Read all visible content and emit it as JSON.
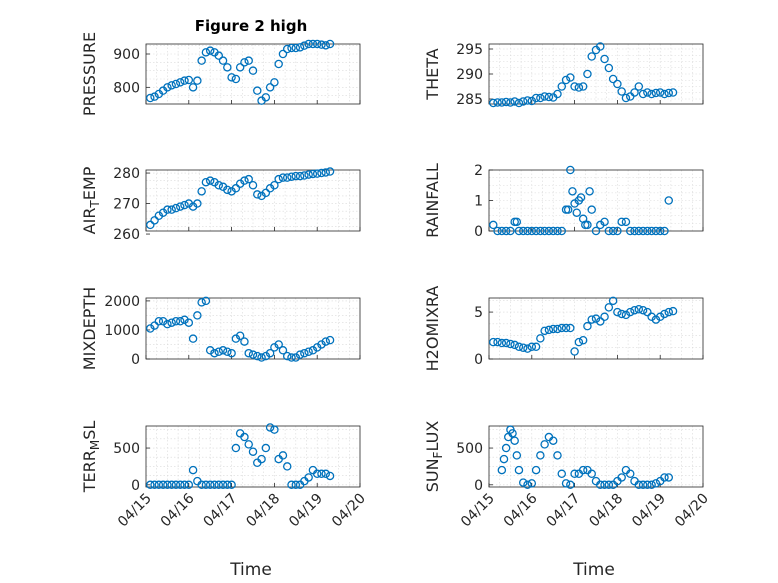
{
  "figure": {
    "title": "Figure 2 high",
    "marker_color": "#0072BD",
    "x_tick_labels": [
      "04/15",
      "04/16",
      "04/17",
      "04/18",
      "04/19",
      "04/20"
    ],
    "x_label": "Time"
  },
  "chart_data": [
    {
      "type": "scatter",
      "ylabel": "PRESSURE",
      "ylim": [
        750,
        930
      ],
      "yticks": [
        800,
        900
      ],
      "xlim": [
        0,
        5
      ],
      "grid": true,
      "x": [
        0.1,
        0.2,
        0.3,
        0.4,
        0.5,
        0.6,
        0.7,
        0.8,
        0.9,
        1.0,
        1.1,
        1.2,
        1.3,
        1.4,
        1.5,
        1.6,
        1.7,
        1.8,
        1.9,
        2.0,
        2.1,
        2.2,
        2.3,
        2.4,
        2.5,
        2.6,
        2.7,
        2.8,
        2.9,
        3.0,
        3.1,
        3.2,
        3.3,
        3.4,
        3.5,
        3.6,
        3.7,
        3.8,
        3.9,
        4.0,
        4.1,
        4.2,
        4.3
      ],
      "y": [
        768,
        772,
        780,
        790,
        800,
        806,
        810,
        815,
        820,
        822,
        800,
        820,
        880,
        905,
        910,
        905,
        895,
        880,
        860,
        830,
        825,
        860,
        875,
        880,
        850,
        790,
        760,
        770,
        800,
        815,
        870,
        900,
        915,
        918,
        918,
        920,
        925,
        930,
        930,
        930,
        928,
        926,
        930
      ]
    },
    {
      "type": "scatter",
      "ylabel": "THETA",
      "ylim": [
        284,
        296
      ],
      "yticks": [
        285,
        290,
        295
      ],
      "xlim": [
        0,
        5
      ],
      "grid": true,
      "x": [
        0.1,
        0.2,
        0.3,
        0.4,
        0.5,
        0.6,
        0.7,
        0.8,
        0.9,
        1.0,
        1.1,
        1.2,
        1.3,
        1.4,
        1.5,
        1.6,
        1.7,
        1.8,
        1.9,
        2.0,
        2.1,
        2.2,
        2.3,
        2.4,
        2.5,
        2.6,
        2.7,
        2.8,
        2.9,
        3.0,
        3.1,
        3.2,
        3.3,
        3.4,
        3.5,
        3.6,
        3.7,
        3.8,
        3.9,
        4.0,
        4.1,
        4.2,
        4.3
      ],
      "y": [
        284.2,
        284.3,
        284.3,
        284.4,
        284.3,
        284.5,
        284.2,
        284.5,
        284.7,
        284.6,
        285.2,
        285.2,
        285.5,
        285.4,
        285.3,
        286.0,
        287.5,
        288.8,
        289.3,
        287.5,
        287.3,
        287.5,
        290.0,
        293.5,
        294.8,
        295.5,
        293.0,
        291.2,
        289.0,
        288.0,
        286.5,
        285.2,
        285.5,
        286.3,
        287.5,
        286.0,
        286.3,
        286.0,
        286.2,
        286.3,
        286.0,
        286.2,
        286.3
      ]
    },
    {
      "type": "scatter",
      "ylabel": "AIR_TEMP",
      "ylim": [
        261,
        281
      ],
      "yticks": [
        260,
        270,
        280
      ],
      "xlim": [
        0,
        5
      ],
      "grid": true,
      "x": [
        0.1,
        0.2,
        0.3,
        0.4,
        0.5,
        0.6,
        0.7,
        0.8,
        0.9,
        1.0,
        1.1,
        1.2,
        1.3,
        1.4,
        1.5,
        1.6,
        1.7,
        1.8,
        1.9,
        2.0,
        2.1,
        2.2,
        2.3,
        2.4,
        2.5,
        2.6,
        2.7,
        2.8,
        2.9,
        3.0,
        3.1,
        3.2,
        3.3,
        3.4,
        3.5,
        3.6,
        3.7,
        3.8,
        3.9,
        4.0,
        4.1,
        4.2,
        4.3
      ],
      "y": [
        263,
        264.5,
        266,
        267,
        268,
        268,
        268.5,
        269,
        269.5,
        270,
        269,
        270,
        274,
        277,
        277.5,
        277,
        276,
        275.5,
        274.5,
        274,
        275,
        276.5,
        277.5,
        278,
        276,
        273,
        272.5,
        273.5,
        275,
        276,
        278,
        278.5,
        278.5,
        278.8,
        279,
        279,
        279.2,
        279.5,
        279.7,
        279.8,
        280,
        280.2,
        280.5
      ]
    },
    {
      "type": "scatter",
      "ylabel": "RAINFALL",
      "ylim": [
        0,
        2
      ],
      "yticks": [
        0,
        1,
        2
      ],
      "xlim": [
        0,
        5
      ],
      "grid": true,
      "x": [
        0.1,
        0.2,
        0.3,
        0.4,
        0.5,
        0.6,
        0.65,
        0.7,
        0.8,
        0.9,
        1.0,
        1.1,
        1.2,
        1.3,
        1.4,
        1.5,
        1.6,
        1.7,
        1.8,
        1.85,
        1.9,
        1.95,
        2.0,
        2.05,
        2.1,
        2.15,
        2.2,
        2.25,
        2.3,
        2.35,
        2.4,
        2.5,
        2.6,
        2.7,
        2.8,
        2.9,
        3.0,
        3.1,
        3.2,
        3.3,
        3.4,
        3.5,
        3.6,
        3.7,
        3.8,
        3.9,
        4.0,
        4.1,
        4.2
      ],
      "y": [
        0.2,
        0,
        0,
        0,
        0,
        0.3,
        0.3,
        0,
        0,
        0,
        0,
        0,
        0,
        0,
        0,
        0,
        0,
        0,
        0.7,
        0.7,
        2.0,
        1.3,
        0.9,
        0.6,
        1.0,
        1.1,
        0.4,
        0.2,
        0.2,
        1.3,
        0.7,
        0,
        0.2,
        0.3,
        0,
        0,
        0,
        0.3,
        0.3,
        0,
        0,
        0,
        0,
        0,
        0,
        0,
        0,
        0,
        1.0
      ]
    },
    {
      "type": "scatter",
      "ylabel": "MIXDEPTH",
      "ylim": [
        0,
        2100
      ],
      "yticks": [
        0,
        1000,
        2000
      ],
      "xlim": [
        0,
        5
      ],
      "grid": true,
      "x": [
        0.1,
        0.2,
        0.3,
        0.4,
        0.5,
        0.6,
        0.7,
        0.8,
        0.9,
        1.0,
        1.1,
        1.2,
        1.3,
        1.4,
        1.5,
        1.6,
        1.7,
        1.8,
        1.9,
        2.0,
        2.1,
        2.2,
        2.3,
        2.4,
        2.5,
        2.6,
        2.7,
        2.8,
        2.9,
        3.0,
        3.1,
        3.2,
        3.3,
        3.4,
        3.5,
        3.6,
        3.7,
        3.8,
        3.9,
        4.0,
        4.1,
        4.2,
        4.3
      ],
      "y": [
        1050,
        1150,
        1300,
        1300,
        1200,
        1250,
        1300,
        1300,
        1350,
        1250,
        700,
        1500,
        1950,
        2000,
        300,
        200,
        250,
        300,
        250,
        200,
        700,
        800,
        600,
        200,
        150,
        100,
        50,
        100,
        200,
        400,
        500,
        300,
        100,
        50,
        50,
        150,
        200,
        250,
        300,
        400,
        500,
        600,
        650
      ]
    },
    {
      "type": "scatter",
      "ylabel": "H2OMIXRA",
      "ylim": [
        0,
        6.5
      ],
      "yticks": [
        0,
        5
      ],
      "xlim": [
        0,
        5
      ],
      "grid": true,
      "x": [
        0.1,
        0.2,
        0.3,
        0.4,
        0.5,
        0.6,
        0.7,
        0.8,
        0.9,
        1.0,
        1.1,
        1.2,
        1.3,
        1.4,
        1.5,
        1.6,
        1.7,
        1.8,
        1.9,
        2.0,
        2.1,
        2.2,
        2.3,
        2.4,
        2.5,
        2.6,
        2.7,
        2.8,
        2.9,
        3.0,
        3.1,
        3.2,
        3.3,
        3.4,
        3.5,
        3.6,
        3.7,
        3.8,
        3.9,
        4.0,
        4.1,
        4.2,
        4.3
      ],
      "y": [
        1.8,
        1.8,
        1.7,
        1.7,
        1.6,
        1.5,
        1.3,
        1.2,
        1.1,
        1.3,
        1.3,
        2.2,
        3.0,
        3.1,
        3.2,
        3.2,
        3.3,
        3.3,
        3.3,
        0.8,
        1.8,
        2.0,
        3.5,
        4.2,
        4.3,
        4.0,
        4.5,
        5.5,
        6.2,
        5.0,
        4.8,
        4.7,
        5.0,
        5.2,
        5.3,
        5.2,
        5.0,
        4.5,
        4.2,
        4.5,
        4.8,
        5.0,
        5.1
      ]
    },
    {
      "type": "scatter",
      "ylabel": "TERR_MSL",
      "ylim": [
        -30,
        800
      ],
      "yticks": [
        0,
        500
      ],
      "xlim": [
        0,
        5
      ],
      "grid": true,
      "x": [
        0.1,
        0.2,
        0.3,
        0.4,
        0.5,
        0.6,
        0.7,
        0.8,
        0.9,
        1.0,
        1.1,
        1.2,
        1.3,
        1.4,
        1.5,
        1.6,
        1.7,
        1.8,
        1.9,
        2.0,
        2.1,
        2.2,
        2.3,
        2.4,
        2.5,
        2.6,
        2.7,
        2.8,
        2.9,
        3.0,
        3.1,
        3.2,
        3.3,
        3.4,
        3.5,
        3.6,
        3.7,
        3.8,
        3.9,
        4.0,
        4.1,
        4.2,
        4.3
      ],
      "y": [
        0,
        0,
        0,
        0,
        0,
        0,
        0,
        0,
        0,
        0,
        200,
        50,
        0,
        0,
        0,
        0,
        0,
        0,
        0,
        0,
        500,
        700,
        650,
        550,
        450,
        300,
        350,
        500,
        780,
        750,
        350,
        400,
        250,
        0,
        0,
        0,
        50,
        100,
        200,
        150,
        150,
        150,
        120
      ]
    },
    {
      "type": "scatter",
      "ylabel": "SUN_FLUX",
      "ylim": [
        -30,
        800
      ],
      "yticks": [
        0,
        500
      ],
      "xlim": [
        0,
        5
      ],
      "grid": true,
      "x": [
        0.3,
        0.35,
        0.4,
        0.45,
        0.5,
        0.55,
        0.6,
        0.65,
        0.7,
        0.8,
        0.9,
        1.0,
        1.1,
        1.2,
        1.3,
        1.4,
        1.5,
        1.6,
        1.7,
        1.8,
        1.9,
        2.0,
        2.1,
        2.2,
        2.3,
        2.4,
        2.5,
        2.6,
        2.7,
        2.8,
        2.9,
        3.0,
        3.1,
        3.2,
        3.3,
        3.4,
        3.5,
        3.6,
        3.7,
        3.8,
        3.9,
        4.0,
        4.1,
        4.2
      ],
      "y": [
        200,
        350,
        500,
        650,
        750,
        700,
        600,
        400,
        200,
        30,
        0,
        20,
        200,
        400,
        550,
        650,
        600,
        400,
        150,
        20,
        0,
        150,
        150,
        200,
        200,
        150,
        50,
        0,
        0,
        0,
        0,
        50,
        100,
        200,
        150,
        50,
        0,
        0,
        0,
        0,
        20,
        50,
        100,
        100
      ]
    }
  ]
}
